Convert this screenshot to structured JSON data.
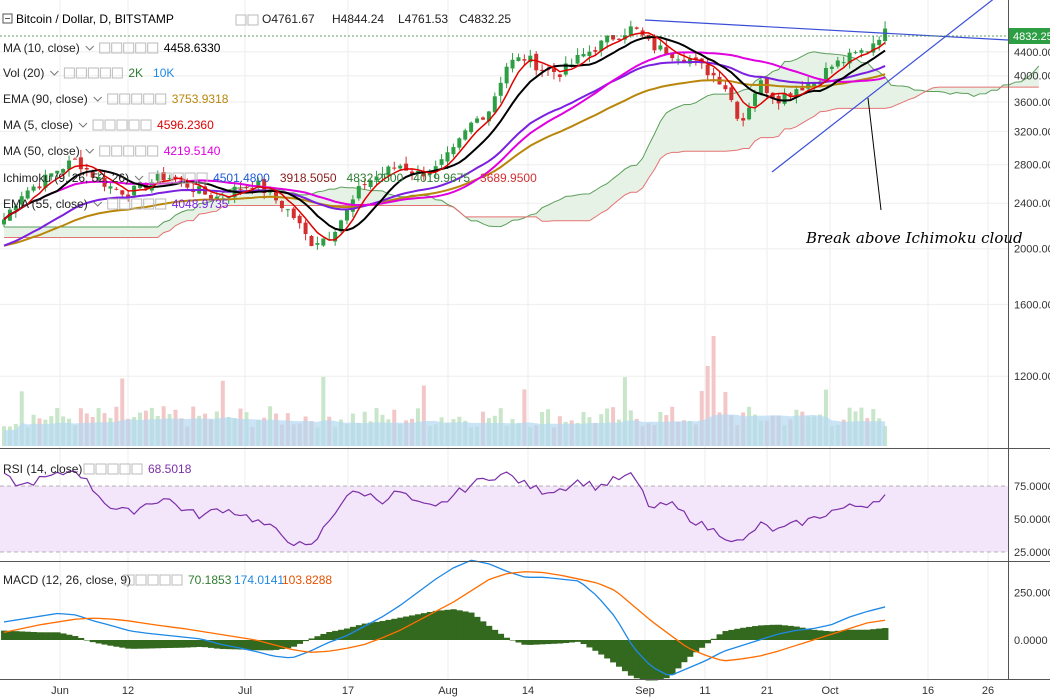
{
  "header": {
    "title": "Bitcoin / Dollar, D, BITSTAMP",
    "open": "O4761.67",
    "high": "H4844.24",
    "low": "L4761.53",
    "close": "C4832.25"
  },
  "indicators": [
    {
      "label": "MA (10, close)",
      "values": [
        "4458.6330"
      ],
      "colors": [
        "#000000"
      ]
    },
    {
      "label": "Vol (20)",
      "values": [
        "2K",
        "10K"
      ],
      "colors": [
        "#2e7d32",
        "#1e88e5"
      ]
    },
    {
      "label": "EMA (90, close)",
      "values": [
        "3753.9318"
      ],
      "colors": [
        "#b8860b"
      ]
    },
    {
      "label": "MA (5, close)",
      "values": [
        "4596.2360"
      ],
      "colors": [
        "#e00000"
      ]
    },
    {
      "label": "MA (50, close)",
      "values": [
        "4219.5140"
      ],
      "colors": [
        "#e000e0"
      ]
    },
    {
      "label": "Ichimoku (9, 26, 52, 26)",
      "values": [
        "4501.4800",
        "3918.5050",
        "4832.2500",
        "4019.9675",
        "3689.9500"
      ],
      "colors": [
        "#1e5ad6",
        "#8b1a1a",
        "#2e7d32",
        "#2e7d32",
        "#d32f2f"
      ]
    },
    {
      "label": "EMA (55, close)",
      "values": [
        "4048.9735"
      ],
      "colors": [
        "#7b1fe0"
      ]
    }
  ],
  "annotation": "Break above Ichimoku cloud",
  "price_tag": "4832.25",
  "rsi": {
    "label": "RSI (14, close)",
    "value": "68.5018"
  },
  "macd": {
    "label": "MACD (12, 26, close, 9)",
    "values": [
      "70.1853",
      "174.0141",
      "103.8288"
    ],
    "colors": [
      "#2e7d32",
      "#1e88e5",
      "#e65100"
    ]
  },
  "colors": {
    "up": "#2e9e44",
    "down": "#d32f2f",
    "ma10": "#000000",
    "ma5": "#e00000",
    "ma50": "#e000e0",
    "ema55": "#7b1fe0",
    "ema90": "#b8860b",
    "cloud": "#e6f2e6",
    "cloud_edge_a": "#5a9e5a",
    "cloud_edge_b": "#e57373",
    "trend": "#3a4fd8",
    "rsi_line": "#7b2fa8",
    "rsi_band": "#f3e5fa",
    "macd_line": "#1e88e5",
    "signal_line": "#ff6d00",
    "hist": "#33691e",
    "vol_ma": "#b3d9f2"
  },
  "chart_data": {
    "type": "candlestick",
    "title": "Bitcoin / Dollar, D, BITSTAMP",
    "x_ticks": [
      "Jun",
      "12",
      "Jul",
      "17",
      "Aug",
      "14",
      "Sep",
      "11",
      "21",
      "Oct",
      "16",
      "26"
    ],
    "y_ticks": [
      "1200.00",
      "1600.00",
      "2000.00",
      "2400.00",
      "2800.00",
      "3200.00",
      "3600.00",
      "4000.00",
      "4400.00"
    ],
    "ylim": [
      900,
      5000
    ],
    "scale": "log",
    "rsi_ticks": [
      "25.0000",
      "50.0000",
      "75.0000"
    ],
    "macd_ticks": [
      "0.0000",
      "250.0000"
    ],
    "close_path": [
      2250,
      2500,
      2600,
      2750,
      2850,
      2680,
      2550,
      2500,
      2600,
      2680,
      2600,
      2500,
      2450,
      2550,
      2600,
      2450,
      2300,
      2050,
      2100,
      2300,
      2600,
      2700,
      2800,
      2700,
      2750,
      2950,
      3300,
      3500,
      4200,
      4300,
      4100,
      4050,
      4300,
      4500,
      4700,
      4850,
      4500,
      4400,
      4300,
      4100,
      3900,
      3300,
      3900,
      3650,
      3800,
      3900,
      4150,
      4300,
      4450,
      4832.25
    ],
    "rsi": [
      82,
      75,
      80,
      83,
      88,
      72,
      58,
      55,
      62,
      66,
      57,
      52,
      58,
      55,
      49,
      42,
      33,
      27,
      47,
      68,
      70,
      64,
      71,
      61,
      58,
      68,
      76,
      82,
      84,
      76,
      71,
      73,
      79,
      74,
      80,
      83,
      57,
      62,
      52,
      44,
      38,
      31,
      46,
      41,
      46,
      50,
      56,
      59,
      61,
      68.5
    ],
    "macd": [
      95,
      110,
      125,
      140,
      132,
      100,
      75,
      48,
      35,
      25,
      15,
      5,
      -22,
      -40,
      -60,
      -85,
      -95,
      -60,
      -15,
      20,
      70,
      120,
      180,
      250,
      320,
      380,
      420,
      400,
      360,
      330,
      330,
      320,
      310,
      230,
      120,
      -40,
      -140,
      -190,
      -150,
      -110,
      -60,
      -30,
      0,
      30,
      50,
      60,
      80,
      120,
      150,
      174
    ],
    "signal": [
      40,
      60,
      80,
      95,
      110,
      115,
      110,
      100,
      85,
      72,
      60,
      45,
      30,
      15,
      0,
      -25,
      -50,
      -65,
      -60,
      -45,
      -25,
      10,
      50,
      100,
      150,
      200,
      260,
      320,
      350,
      360,
      355,
      340,
      320,
      300,
      260,
      180,
      100,
      30,
      -40,
      -80,
      -110,
      -100,
      -85,
      -60,
      -30,
      0,
      30,
      60,
      90,
      104
    ],
    "volume_spikes": [
      "Sep 14",
      "Sep 15"
    ],
    "annotation": "Break above Ichimoku cloud"
  }
}
